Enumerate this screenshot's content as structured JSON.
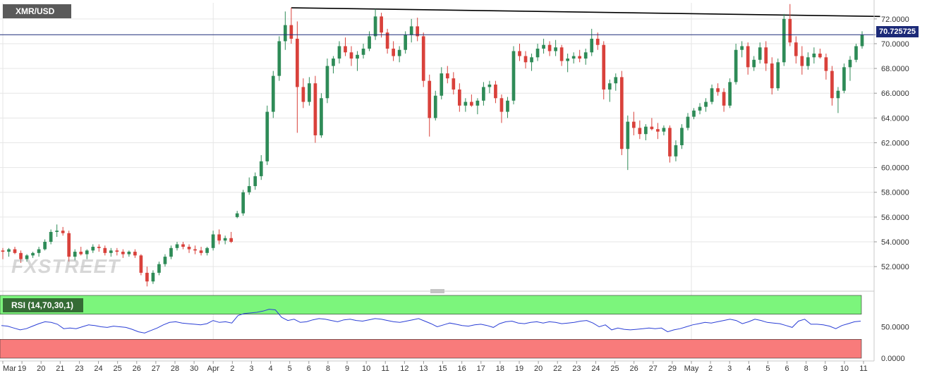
{
  "symbol": "XMR/USD",
  "watermark": "FXSTREET",
  "colors": {
    "up": "#2e8b57",
    "down": "#d9413b",
    "price_line": "#1c2a78",
    "rsi_line": "#2b3fd6",
    "overbought_fill": "#7cf57c",
    "oversold_fill": "#f87b7b",
    "grid": "#e6e6e6"
  },
  "price_axis": {
    "ticks": [
      "72.0000",
      "70.0000",
      "68.0000",
      "66.0000",
      "64.0000",
      "62.0000",
      "60.0000",
      "58.0000",
      "56.0000",
      "54.0000",
      "52.0000"
    ]
  },
  "rsi_axis": {
    "ticks": [
      "50.0000",
      "0.0000"
    ]
  },
  "date_axis": {
    "labels": [
      "Mar",
      "19",
      "20",
      "21",
      "23",
      "24",
      "25",
      "26",
      "27",
      "28",
      "30",
      "Apr",
      "2",
      "3",
      "4",
      "5",
      "6",
      "8",
      "9",
      "10",
      "11",
      "12",
      "13",
      "15",
      "16",
      "17",
      "18",
      "19",
      "20",
      "22",
      "23",
      "24",
      "25",
      "26",
      "27",
      "29",
      "May",
      "2",
      "3",
      "4",
      "5",
      "6",
      "8",
      "9",
      "10",
      "11"
    ]
  },
  "chart_data": [
    {
      "type": "candlestick",
      "title": "XMR/USD",
      "last_price": "70.725725",
      "ylim": [
        50.3,
        73.3
      ],
      "grid": true,
      "candles_ohlc": [
        [
          53.3,
          53.5,
          52.6,
          53.2
        ],
        [
          53.2,
          53.5,
          52.8,
          53.4
        ],
        [
          53.4,
          53.6,
          53.0,
          53.1
        ],
        [
          53.1,
          53.3,
          52.3,
          52.6
        ],
        [
          52.6,
          53.0,
          52.4,
          52.9
        ],
        [
          52.9,
          53.2,
          52.7,
          53.1
        ],
        [
          53.1,
          53.6,
          52.8,
          53.4
        ],
        [
          53.4,
          54.2,
          53.3,
          54.0
        ],
        [
          54.0,
          55.0,
          53.8,
          54.8
        ],
        [
          54.8,
          55.4,
          54.4,
          54.9
        ],
        [
          54.9,
          55.2,
          54.5,
          54.7
        ],
        [
          54.7,
          54.9,
          52.4,
          52.8
        ],
        [
          52.8,
          53.4,
          52.5,
          53.2
        ],
        [
          53.2,
          53.6,
          52.9,
          53.0
        ],
        [
          53.0,
          53.4,
          52.6,
          53.3
        ],
        [
          53.3,
          53.8,
          53.1,
          53.6
        ],
        [
          53.6,
          53.8,
          53.2,
          53.5
        ],
        [
          53.5,
          53.7,
          52.9,
          53.1
        ],
        [
          53.1,
          53.5,
          52.8,
          53.3
        ],
        [
          53.3,
          53.5,
          52.9,
          53.2
        ],
        [
          53.2,
          53.4,
          52.7,
          53.0
        ],
        [
          53.0,
          53.3,
          52.8,
          53.2
        ],
        [
          53.2,
          53.4,
          52.7,
          52.9
        ],
        [
          52.9,
          53.0,
          51.3,
          51.5
        ],
        [
          51.5,
          52.0,
          50.4,
          50.8
        ],
        [
          50.8,
          51.7,
          50.6,
          51.5
        ],
        [
          51.5,
          52.4,
          51.3,
          52.2
        ],
        [
          52.2,
          53.0,
          52.0,
          52.8
        ],
        [
          52.8,
          53.7,
          52.6,
          53.5
        ],
        [
          53.5,
          54.0,
          53.3,
          53.8
        ],
        [
          53.8,
          54.0,
          53.4,
          53.6
        ],
        [
          53.6,
          53.8,
          53.1,
          53.4
        ],
        [
          53.4,
          53.7,
          53.0,
          53.3
        ],
        [
          53.3,
          53.6,
          52.9,
          53.1
        ],
        [
          53.1,
          53.6,
          52.9,
          53.5
        ],
        [
          53.5,
          54.9,
          53.3,
          54.6
        ],
        [
          54.6,
          55.0,
          53.8,
          54.1
        ],
        [
          54.1,
          54.5,
          53.8,
          54.3
        ],
        [
          54.3,
          54.8,
          53.9,
          54.0
        ],
        [
          56.0,
          56.5,
          55.9,
          56.3
        ],
        [
          56.3,
          58.2,
          56.1,
          58.0
        ],
        [
          58.0,
          59.2,
          57.8,
          58.5
        ],
        [
          58.5,
          59.6,
          58.2,
          59.3
        ],
        [
          59.3,
          61.0,
          59.0,
          60.5
        ],
        [
          60.5,
          65.0,
          60.2,
          64.5
        ],
        [
          64.5,
          67.8,
          64.0,
          67.4
        ],
        [
          67.4,
          70.6,
          67.0,
          70.2
        ],
        [
          70.2,
          72.6,
          69.5,
          71.5
        ],
        [
          71.5,
          72.9,
          70.0,
          70.4
        ],
        [
          70.4,
          71.8,
          62.8,
          66.5
        ],
        [
          66.5,
          67.2,
          64.8,
          65.3
        ],
        [
          65.3,
          67.3,
          65.0,
          66.8
        ],
        [
          66.8,
          67.4,
          62.0,
          62.6
        ],
        [
          62.6,
          66.0,
          62.4,
          65.6
        ],
        [
          65.6,
          68.8,
          65.2,
          68.2
        ],
        [
          68.2,
          69.0,
          67.6,
          68.8
        ],
        [
          68.8,
          70.2,
          68.4,
          69.8
        ],
        [
          69.8,
          70.5,
          69.0,
          69.3
        ],
        [
          69.3,
          69.8,
          68.2,
          68.8
        ],
        [
          68.8,
          69.4,
          67.8,
          69.1
        ],
        [
          69.1,
          70.0,
          68.8,
          69.6
        ],
        [
          69.6,
          71.0,
          69.4,
          70.6
        ],
        [
          70.6,
          72.8,
          70.3,
          72.2
        ],
        [
          72.2,
          72.5,
          70.5,
          70.9
        ],
        [
          70.9,
          71.2,
          69.2,
          69.6
        ],
        [
          69.6,
          70.2,
          68.6,
          69.0
        ],
        [
          69.0,
          69.8,
          68.5,
          69.5
        ],
        [
          69.5,
          71.0,
          69.2,
          70.7
        ],
        [
          70.7,
          72.0,
          70.1,
          71.4
        ],
        [
          71.4,
          72.1,
          70.2,
          70.6
        ],
        [
          70.6,
          70.9,
          66.5,
          67.0
        ],
        [
          67.0,
          67.5,
          62.5,
          64.0
        ],
        [
          64.0,
          66.2,
          63.8,
          65.8
        ],
        [
          65.8,
          68.1,
          65.5,
          67.6
        ],
        [
          67.6,
          68.2,
          66.8,
          67.2
        ],
        [
          67.2,
          67.7,
          65.9,
          66.3
        ],
        [
          66.3,
          66.8,
          64.5,
          65.0
        ],
        [
          65.0,
          65.6,
          64.5,
          65.3
        ],
        [
          65.3,
          65.9,
          64.9,
          65.0
        ],
        [
          65.0,
          65.6,
          64.3,
          65.4
        ],
        [
          65.4,
          66.9,
          65.0,
          66.5
        ],
        [
          66.5,
          67.0,
          66.0,
          66.7
        ],
        [
          66.7,
          67.0,
          65.2,
          65.6
        ],
        [
          65.6,
          65.9,
          63.6,
          64.5
        ],
        [
          64.5,
          65.7,
          64.0,
          65.4
        ],
        [
          65.4,
          69.8,
          65.1,
          69.4
        ],
        [
          69.4,
          70.0,
          68.6,
          69.0
        ],
        [
          69.0,
          69.4,
          68.0,
          68.5
        ],
        [
          68.5,
          69.2,
          67.8,
          68.9
        ],
        [
          68.9,
          70.0,
          68.6,
          69.6
        ],
        [
          69.6,
          70.4,
          69.2,
          69.9
        ],
        [
          69.9,
          70.2,
          69.0,
          69.4
        ],
        [
          69.4,
          70.3,
          69.0,
          69.7
        ],
        [
          69.7,
          69.9,
          68.2,
          68.6
        ],
        [
          68.6,
          69.2,
          67.7,
          68.8
        ],
        [
          68.8,
          69.3,
          68.4,
          69.0
        ],
        [
          69.0,
          69.5,
          68.5,
          68.8
        ],
        [
          68.8,
          69.6,
          68.3,
          69.3
        ],
        [
          69.3,
          71.2,
          69.0,
          70.4
        ],
        [
          70.4,
          70.9,
          69.5,
          69.9
        ],
        [
          69.9,
          70.2,
          65.5,
          66.3
        ],
        [
          66.3,
          67.1,
          65.3,
          66.8
        ],
        [
          66.8,
          67.6,
          66.2,
          67.3
        ],
        [
          67.3,
          67.8,
          61.0,
          61.5
        ],
        [
          61.5,
          64.2,
          59.8,
          63.7
        ],
        [
          63.7,
          64.5,
          62.6,
          63.2
        ],
        [
          63.2,
          63.8,
          62.3,
          62.7
        ],
        [
          62.7,
          63.5,
          62.2,
          63.3
        ],
        [
          63.3,
          64.0,
          63.0,
          63.1
        ],
        [
          63.1,
          63.6,
          62.3,
          62.9
        ],
        [
          62.9,
          63.4,
          62.6,
          63.2
        ],
        [
          63.2,
          63.4,
          60.4,
          60.9
        ],
        [
          60.9,
          62.2,
          60.5,
          61.8
        ],
        [
          61.8,
          63.5,
          61.5,
          63.2
        ],
        [
          63.2,
          64.4,
          63.0,
          64.1
        ],
        [
          64.1,
          64.8,
          63.9,
          64.6
        ],
        [
          64.6,
          65.2,
          64.3,
          64.9
        ],
        [
          64.9,
          65.6,
          64.5,
          65.3
        ],
        [
          65.3,
          66.7,
          65.1,
          66.4
        ],
        [
          66.4,
          66.8,
          65.8,
          66.1
        ],
        [
          66.1,
          66.4,
          64.5,
          65.0
        ],
        [
          65.0,
          67.2,
          64.8,
          66.9
        ],
        [
          66.9,
          70.0,
          66.7,
          69.5
        ],
        [
          69.5,
          70.2,
          68.9,
          69.8
        ],
        [
          69.8,
          70.1,
          67.5,
          68.1
        ],
        [
          68.1,
          69.0,
          67.8,
          68.7
        ],
        [
          68.7,
          70.1,
          68.4,
          69.7
        ],
        [
          69.7,
          70.2,
          67.8,
          68.4
        ],
        [
          68.4,
          68.9,
          65.9,
          66.4
        ],
        [
          66.4,
          68.8,
          66.2,
          68.5
        ],
        [
          68.5,
          72.4,
          68.2,
          72.0
        ],
        [
          72.0,
          73.2,
          69.8,
          70.1
        ],
        [
          70.1,
          70.6,
          68.4,
          69.0
        ],
        [
          69.0,
          69.8,
          67.5,
          68.2
        ],
        [
          68.2,
          69.3,
          67.9,
          68.9
        ],
        [
          68.9,
          69.7,
          68.4,
          69.2
        ],
        [
          69.2,
          69.6,
          68.8,
          68.9
        ],
        [
          68.9,
          69.2,
          67.1,
          67.8
        ],
        [
          67.8,
          68.2,
          65.0,
          65.6
        ],
        [
          65.6,
          66.5,
          64.4,
          66.2
        ],
        [
          66.2,
          68.4,
          66.0,
          68.1
        ],
        [
          68.1,
          69.0,
          67.0,
          68.7
        ],
        [
          68.7,
          70.0,
          68.5,
          69.8
        ],
        [
          69.8,
          71.0,
          69.6,
          70.7
        ]
      ],
      "trendline_from_to": [
        [
          48,
          72.9
        ],
        [
          146,
          72.2
        ]
      ]
    },
    {
      "type": "line",
      "title": "RSI (14,70,30,1)",
      "ylim": [
        0,
        100
      ],
      "values": [
        52,
        51,
        48,
        45,
        47,
        51,
        55,
        58,
        57,
        54,
        47,
        48,
        47,
        50,
        53,
        52,
        50,
        49,
        51,
        50,
        49,
        46,
        42,
        40,
        44,
        48,
        53,
        57,
        58,
        56,
        55,
        54,
        53,
        55,
        60,
        57,
        58,
        56,
        68,
        71,
        72,
        73,
        75,
        78,
        77,
        65,
        60,
        62,
        57,
        58,
        61,
        63,
        62,
        60,
        58,
        61,
        62,
        60,
        59,
        61,
        63,
        62,
        60,
        58,
        57,
        59,
        61,
        63,
        59,
        55,
        50,
        53,
        56,
        54,
        52,
        51,
        53,
        54,
        52,
        49,
        55,
        58,
        59,
        56,
        55,
        57,
        58,
        56,
        58,
        57,
        55,
        56,
        57,
        59,
        60,
        56,
        50,
        53,
        45,
        48,
        46,
        45,
        46,
        47,
        48,
        47,
        48,
        42,
        45,
        47,
        50,
        53,
        55,
        57,
        56,
        58,
        60,
        62,
        60,
        55,
        58,
        62,
        60,
        57,
        56,
        55,
        52,
        49,
        59,
        62,
        54,
        54,
        53,
        51,
        47,
        52,
        55,
        58,
        59
      ],
      "overbought": 70,
      "oversold": 30
    }
  ]
}
